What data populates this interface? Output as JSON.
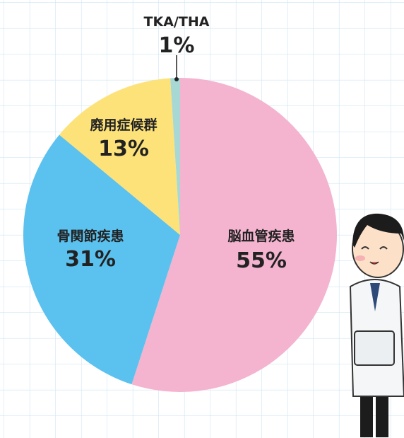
{
  "chart_data": {
    "type": "pie",
    "categories": [
      "脳血管疾患",
      "骨関節疾患",
      "廃用症候群",
      "TKA/THA"
    ],
    "values": [
      55,
      31,
      13,
      1
    ],
    "value_labels": [
      "55%",
      "31%",
      "13%",
      "1%"
    ],
    "colors": [
      "#f4b3cf",
      "#5bc1ee",
      "#fde27a",
      "#a8d8d4"
    ],
    "start_angle": "top",
    "direction": "clockwise"
  }
}
